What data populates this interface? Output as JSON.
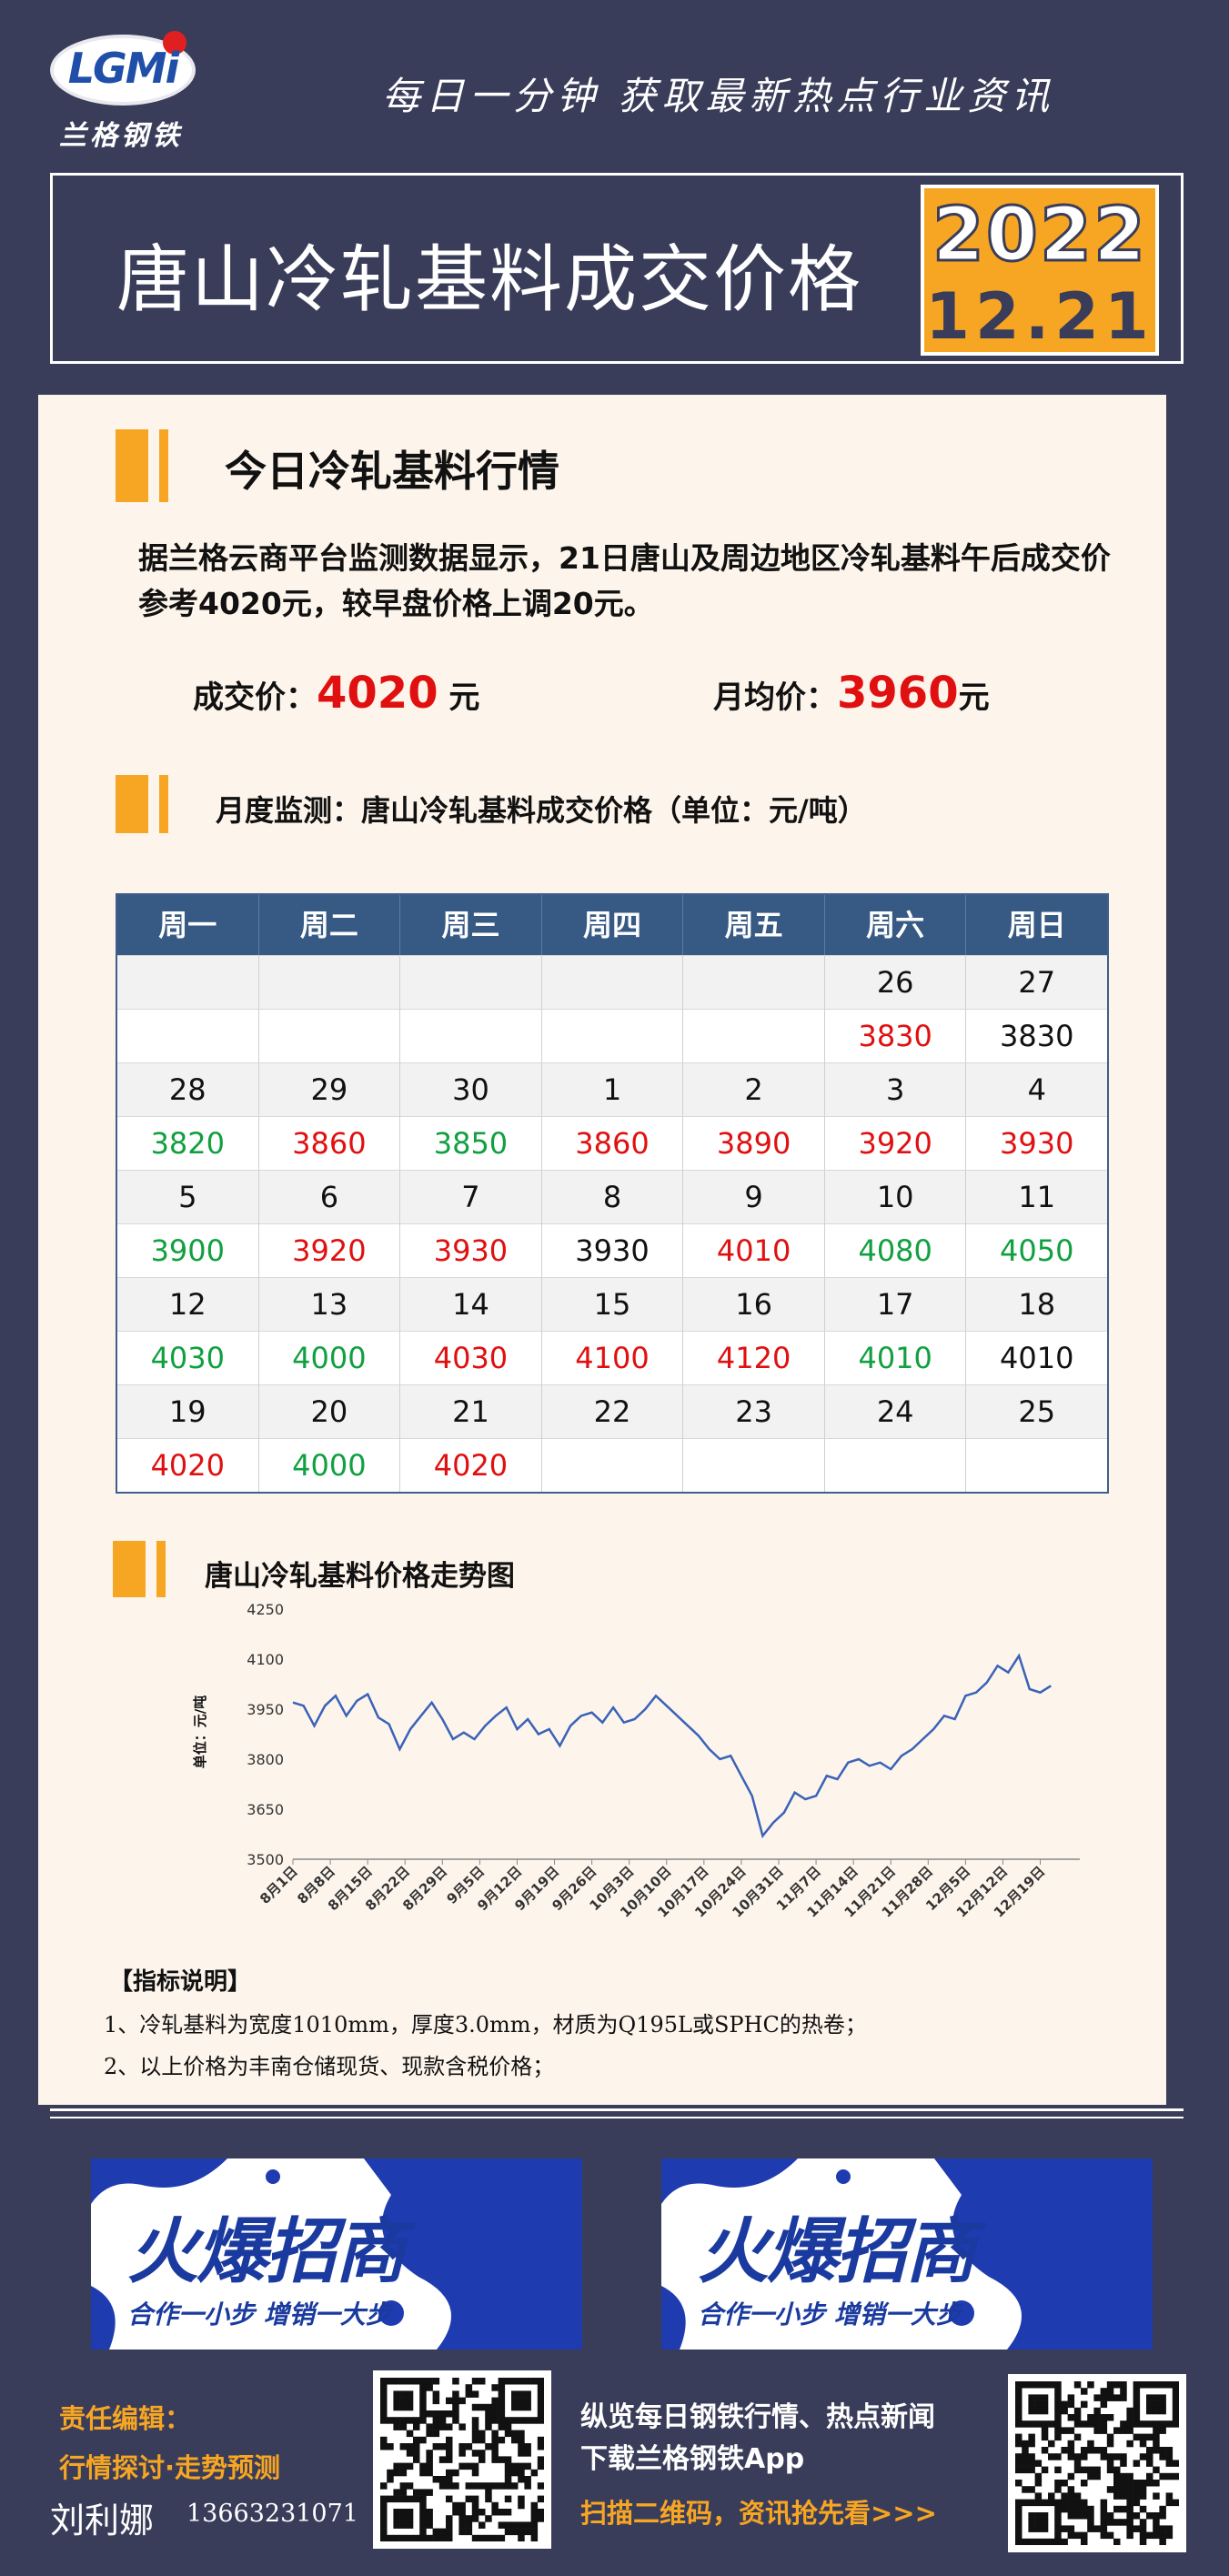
{
  "header": {
    "logo_text": "LGMi",
    "logo_sub": "兰格钢铁",
    "slogan": "每日一分钟  获取最新热点行业资讯",
    "title": "唐山冷轧基料成交价格",
    "date_year": "2022",
    "date_day": "12.21"
  },
  "market": {
    "section_title": "今日冷轧基料行情",
    "paragraph": "据兰格云商平台监测数据显示，21日唐山及周边地区冷轧基料午后成交价参考4020元，较早盘价格上调20元。",
    "deal_label": "成交价：",
    "deal_value": "4020",
    "deal_unit": " 元",
    "avg_label": "月均价：",
    "avg_value": "3960",
    "avg_unit": "元"
  },
  "monthly": {
    "section_title": "月度监测：唐山冷轧基料成交价格（单位：元/吨）",
    "headers": [
      "周一",
      "周二",
      "周三",
      "周四",
      "周五",
      "周六",
      "周日"
    ],
    "weeks": [
      {
        "dates": [
          "",
          "",
          "",
          "",
          "",
          "26",
          "27"
        ],
        "prices": [
          "",
          "",
          "",
          "",
          "",
          "3830",
          "3830"
        ],
        "colors": [
          "",
          "",
          "",
          "",
          "",
          "red",
          "black"
        ]
      },
      {
        "dates": [
          "28",
          "29",
          "30",
          "1",
          "2",
          "3",
          "4"
        ],
        "prices": [
          "3820",
          "3860",
          "3850",
          "3860",
          "3890",
          "3920",
          "3930"
        ],
        "colors": [
          "green",
          "red",
          "green",
          "red",
          "red",
          "red",
          "red"
        ]
      },
      {
        "dates": [
          "5",
          "6",
          "7",
          "8",
          "9",
          "10",
          "11"
        ],
        "prices": [
          "3900",
          "3920",
          "3930",
          "3930",
          "4010",
          "4080",
          "4050"
        ],
        "colors": [
          "green",
          "red",
          "red",
          "black",
          "red",
          "green",
          "green"
        ]
      },
      {
        "dates": [
          "12",
          "13",
          "14",
          "15",
          "16",
          "17",
          "18"
        ],
        "prices": [
          "4030",
          "4000",
          "4030",
          "4100",
          "4120",
          "4010",
          "4010"
        ],
        "colors": [
          "green",
          "green",
          "red",
          "red",
          "red",
          "green",
          "black"
        ]
      },
      {
        "dates": [
          "19",
          "20",
          "21",
          "22",
          "23",
          "24",
          "25"
        ],
        "prices": [
          "4020",
          "4000",
          "4020",
          "",
          "",
          "",
          ""
        ],
        "colors": [
          "red",
          "green",
          "red",
          "",
          "",
          "",
          ""
        ]
      }
    ]
  },
  "chart_data": {
    "type": "line",
    "title": "唐山冷轧基料价格走势图",
    "ylabel": "单位：元/吨",
    "ylim": [
      3500,
      4250
    ],
    "yticks": [
      3500,
      3650,
      3800,
      3950,
      4100,
      4250
    ],
    "x_ticks": [
      "8月1日",
      "8月8日",
      "8月15日",
      "8月22日",
      "8月29日",
      "9月5日",
      "9月12日",
      "9月19日",
      "9月26日",
      "10月3日",
      "10月10日",
      "10月17日",
      "10月24日",
      "10月31日",
      "11月7日",
      "11月14日",
      "11月21日",
      "11月28日",
      "12月5日",
      "12月12日",
      "12月19日"
    ],
    "x_range_days": [
      0,
      144
    ],
    "series": [
      {
        "x": [
          0,
          2,
          4,
          6,
          8,
          10,
          12,
          14,
          16,
          18,
          20,
          22,
          24,
          26,
          28,
          30,
          32,
          34,
          36,
          38,
          40,
          42,
          44,
          46,
          48,
          50,
          52,
          54,
          56,
          58,
          60,
          62,
          64,
          66,
          68,
          70,
          72,
          74,
          76,
          78,
          80,
          82,
          84,
          86,
          88,
          90,
          92,
          94,
          96,
          98,
          100,
          102,
          104,
          106,
          108,
          110,
          112,
          114,
          116,
          118,
          120,
          122,
          124,
          126,
          128,
          130,
          132,
          134,
          136,
          138,
          140,
          142
        ],
        "values": [
          3970,
          3960,
          3900,
          3960,
          3990,
          3930,
          3975,
          3995,
          3925,
          3905,
          3830,
          3890,
          3930,
          3970,
          3920,
          3860,
          3880,
          3860,
          3900,
          3930,
          3955,
          3890,
          3920,
          3875,
          3890,
          3840,
          3900,
          3930,
          3940,
          3910,
          3955,
          3910,
          3920,
          3950,
          3990,
          3960,
          3930,
          3900,
          3870,
          3830,
          3800,
          3810,
          3750,
          3690,
          3570,
          3610,
          3640,
          3700,
          3680,
          3690,
          3750,
          3740,
          3790,
          3800,
          3780,
          3790,
          3770,
          3810,
          3830,
          3860,
          3890,
          3930,
          3920,
          3990,
          4000,
          4030,
          4080,
          4060,
          4110,
          4010,
          4000,
          4020
        ]
      }
    ]
  },
  "notes": {
    "title": "【指标说明】",
    "items": [
      "1、冷轧基料为宽度1010mm，厚度3.0mm，材质为Q195L或SPHC的热卷；",
      "2、以上价格为丰南仓储现货、现款含税价格；"
    ]
  },
  "ads": [
    {
      "title": "火爆招商",
      "sub": "合作一小步  增销一大步"
    },
    {
      "title": "火爆招商",
      "sub": "合作一小步  增销一大步"
    }
  ],
  "footer": {
    "editor_label": "责任编辑：",
    "editor_topic": "行情探讨·走势预测",
    "editor_name": "刘利娜",
    "editor_phone": "13663231071",
    "promo_line1": "纵览每日钢铁行情、热点新闻",
    "promo_line2": "下载兰格钢铁App",
    "promo_line3": "扫描二维码，资讯抢先看>>>"
  },
  "colors": {
    "background": "#3a3d5a",
    "accent": "#f7a623",
    "rise": "#e01010",
    "fall": "#11a040",
    "table_head": "#375a85",
    "line": "#3a62b8"
  }
}
